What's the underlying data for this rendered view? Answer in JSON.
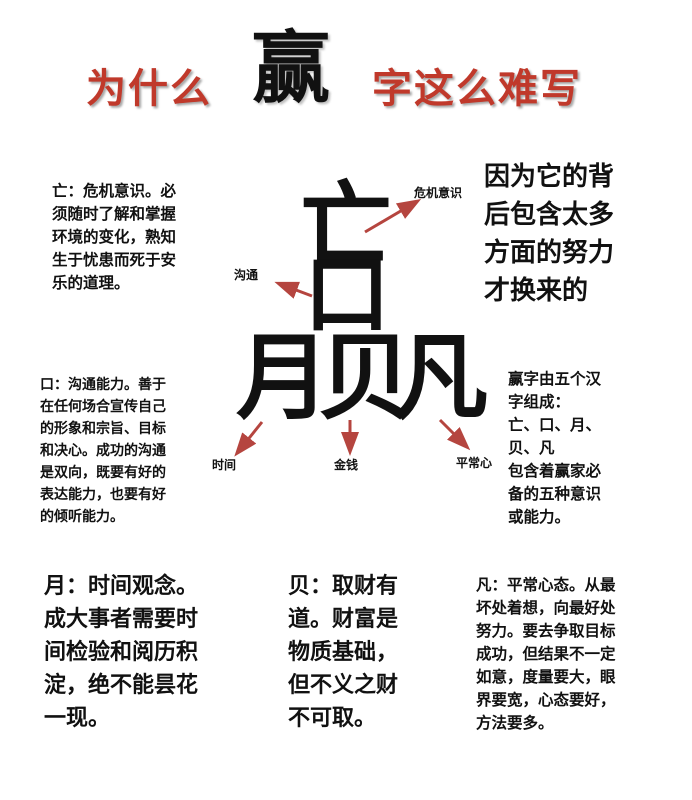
{
  "title": {
    "left": "为什么",
    "center": "赢",
    "right": "字这么难写"
  },
  "center_glyph": {
    "top": "亡",
    "middle": "口",
    "bottom_parts": [
      "月",
      "贝",
      "凡"
    ]
  },
  "arrow_labels": {
    "danger": "危机意识",
    "communicate": "沟通",
    "time": "时间",
    "money": "金钱",
    "ordinary": "平常心"
  },
  "paragraphs": {
    "wang": "亡：危机意识。必\n须随时了解和掌握\n环境的变化，熟知\n生于忧患而死于安\n乐的道理。",
    "reason": "因为它的背\n后包含太多\n方面的努力\n才换来的",
    "kou": "口：沟通能力。善于\n在任何场合宣传自己\n的形象和宗旨、目标\n和决心。成功的沟通\n是双向，既要有好的\n表达能力，也要有好\n的倾听能力。",
    "composition": "赢字由五个汉\n字组成：\n亡、口、月、\n贝、凡\n包含着赢家必\n备的五种意识\n或能力。",
    "yue": "月：时间观念。\n成大事者需要时\n间检验和阅历积\n淀，绝不能昙花\n一现。",
    "bei": "贝：取财有\n道。财富是\n物质基础，\n但不义之财\n不可取。",
    "fan": "凡：平常心态。从最\n坏处着想，向最好处\n努力。要去争取目标\n成功，但结果不一定\n如意，度量要大，眼\n界要宽，心态要好，\n方法要多。"
  },
  "colors": {
    "title_red": "#c0392b",
    "arrow": "#b5453f",
    "text": "#111111"
  }
}
